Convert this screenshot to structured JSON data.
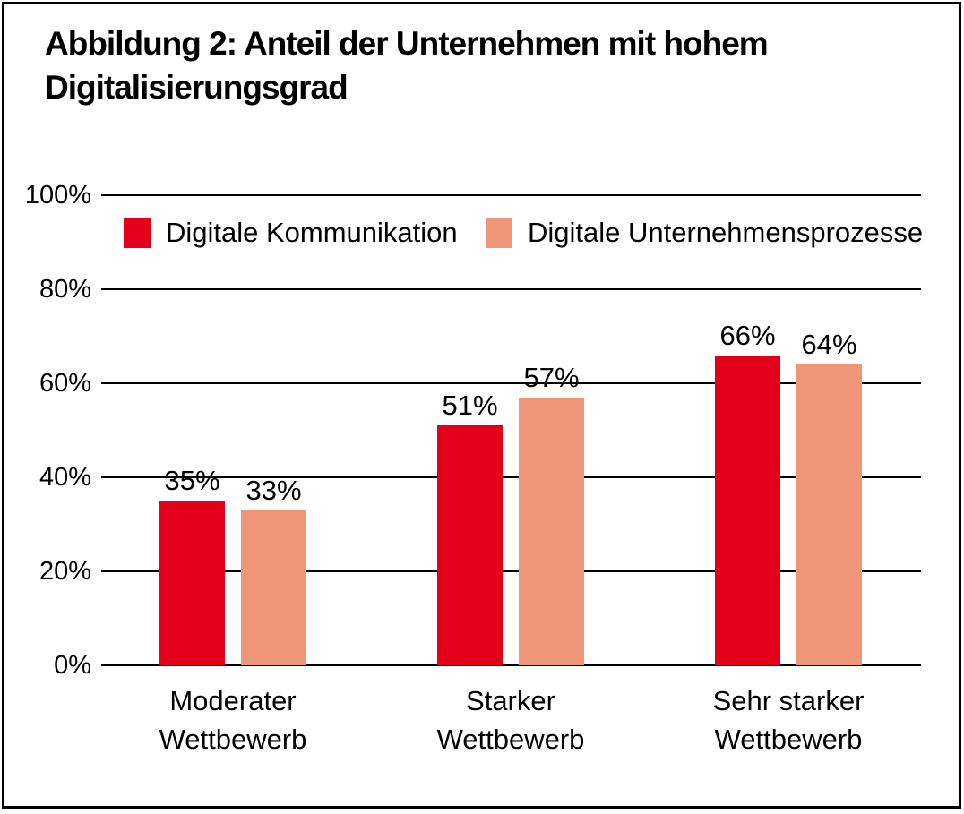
{
  "figure": {
    "title_lines": [
      "Abbildung 2: Anteil der Unternehmen mit hohem",
      "Digitalisierungsgrad"
    ]
  },
  "colors": {
    "series1": "#e2001a",
    "series2": "#f09678",
    "grid": "#000000",
    "frame_border": "#000000",
    "background": "#ffffff",
    "text": "#000000"
  },
  "chart_data": {
    "type": "bar",
    "title": "Abbildung 2: Anteil der Unternehmen mit hohem Digitalisierungsgrad",
    "categories": [
      "Moderater Wettbewerb",
      "Starker Wettbewerb",
      "Sehr starker Wettbewerb"
    ],
    "categories_lines": [
      [
        "Moderater",
        "Wettbewerb"
      ],
      [
        "Starker",
        "Wettbewerb"
      ],
      [
        "Sehr starker",
        "Wettbewerb"
      ]
    ],
    "series": [
      {
        "name": "Digitale Kommunikation",
        "color": "#e2001a",
        "values": [
          35,
          51,
          66
        ]
      },
      {
        "name": "Digitale Unternehmensprozesse",
        "color": "#f09678",
        "values": [
          33,
          57,
          64
        ]
      }
    ],
    "value_labels": [
      [
        "35%",
        "51%",
        "66%"
      ],
      [
        "33%",
        "57%",
        "64%"
      ]
    ],
    "value_suffix": "%",
    "xlabel": "",
    "ylabel": "",
    "ylim": [
      0,
      100
    ],
    "yticks": [
      0,
      20,
      40,
      60,
      80,
      100
    ],
    "ytick_labels": [
      "0%",
      "20%",
      "40%",
      "60%",
      "80%",
      "100%"
    ],
    "grid": true,
    "legend_position": "top-inside"
  }
}
